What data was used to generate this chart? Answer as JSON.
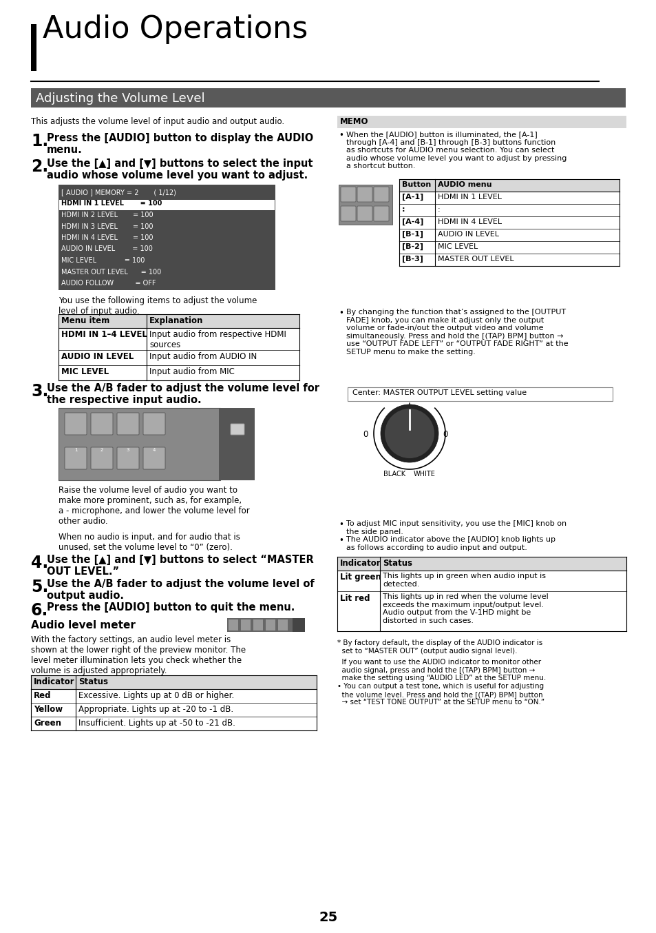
{
  "page_bg": "#ffffff",
  "title_text": "Audio Operations",
  "subtitle_bg": "#595959",
  "subtitle_text": "Adjusting the Volume Level",
  "intro_text": "This adjusts the volume level of input audio and output audio.",
  "step1_num": "1.",
  "step1_text": "Press the [AUDIO] button to display the AUDIO\nmenu.",
  "step2_num": "2.",
  "step2_text": "Use the [▲] and [▼] buttons to select the input\naudio whose volume level you want to adjust.",
  "menu_display_lines": [
    "[ AUDIO ] MEMORY = 2       ( 1/12)",
    "HDMI IN 1 LEVEL       = 100",
    "HDMI IN 2 LEVEL       = 100",
    "HDMI IN 3 LEVEL       = 100",
    "HDMI IN 4 LEVEL       = 100",
    "AUDIO IN LEVEL        = 100",
    "MIC LEVEL             = 100",
    "MASTER OUT LEVEL      = 100",
    "AUDIO FOLLOW          = OFF"
  ],
  "following_text": "You use the following items to adjust the volume\nlevel of input audio.",
  "table1_headers": [
    "Menu item",
    "Explanation"
  ],
  "table1_rows": [
    [
      "HDMI IN 1–4 LEVEL",
      "Input audio from respective HDMI\nsources"
    ],
    [
      "AUDIO IN LEVEL",
      "Input audio from AUDIO IN"
    ],
    [
      "MIC LEVEL",
      "Input audio from MIC"
    ]
  ],
  "step3_num": "3.",
  "step3_text": "Use the A/B fader to adjust the volume level for\nthe respective input audio.",
  "step3_sub1": "Raise the volume level of audio you want to\nmake more prominent, such as, for example,\na - microphone, and lower the volume level for\nother audio.",
  "step3_sub2": "When no audio is input, and for audio that is\nunused, set the volume level to “0” (zero).",
  "step4_num": "4.",
  "step4_text": "Use the [▲] and [▼] buttons to select “MASTER\nOUT LEVEL.”",
  "step5_num": "5.",
  "step5_text": "Use the A/B fader to adjust the volume level of\noutput audio.",
  "step6_num": "6.",
  "step6_text": "Press the [AUDIO] button to quit the menu.",
  "audio_level_heading": "Audio level meter",
  "audio_level_intro": "With the factory settings, an audio level meter is\nshown at the lower right of the preview monitor. The\nlevel meter illumination lets you check whether the\nvolume is adjusted appropriately.",
  "table2_headers": [
    "Indicator",
    "Status"
  ],
  "table2_rows": [
    [
      "Red",
      "Excessive. Lights up at 0 dB or higher."
    ],
    [
      "Yellow",
      "Appropriate. Lights up at -20 to -1 dB."
    ],
    [
      "Green",
      "Insufficient. Lights up at -50 to -21 dB."
    ]
  ],
  "memo_text1": "When the [AUDIO] button is illuminated, the [A-1]\nthrough [A-4] and [B-1] through [B-3] buttons function\nas shortcuts for AUDIO menu selection. You can select\naudio whose volume level you want to adjust by pressing\na shortcut button.",
  "right_table_headers": [
    "Button",
    "AUDIO menu"
  ],
  "right_table_rows": [
    [
      "[A-1]",
      "HDMI IN 1 LEVEL"
    ],
    [
      ":",
      ":"
    ],
    [
      "[A-4]",
      "HDMI IN 4 LEVEL"
    ],
    [
      "[B-1]",
      "AUDIO IN LEVEL"
    ],
    [
      "[B-2]",
      "MIC LEVEL"
    ],
    [
      "[B-3]",
      "MASTER OUT LEVEL"
    ]
  ],
  "memo2_text": "By changing the function that’s assigned to the [OUTPUT\nFADE] knob, you can make it adjust only the output\nvolume or fade-in/out the output video and volume\nsimultaneously. Press and hold the [(TAP) BPM] button →\nuse “OUTPUT FADE LEFT” or “OUTPUT FADE RIGHT” at the\nSETUP menu to make the setting.",
  "output_fade_label": "Center: MASTER OUTPUT LEVEL setting value",
  "output_fade_left": "0",
  "output_fade_right": "0",
  "output_fade_black": "BLACK",
  "output_fade_white": "WHITE",
  "mic_text": "To adjust MIC input sensitivity, you use the [MIC] knob on\nthe side panel.",
  "audio_indicator_text": "The AUDIO indicator above the [AUDIO] knob lights up\nas follows according to audio input and output.",
  "table3_headers": [
    "Indicator",
    "Status"
  ],
  "table3_rows": [
    [
      "Lit green",
      "This lights up in green when audio input is\ndetected."
    ],
    [
      "Lit red",
      "This lights up in red when the volume level\nexceeds the maximum input/output level.\nAudio output from the V-1HD might be\ndistorted in such cases."
    ]
  ],
  "footnote1": "* By factory default, the display of the AUDIO indicator is\n  set to “MASTER OUT” (output audio signal level).",
  "footnote2": "  If you want to use the AUDIO indicator to monitor other\n  audio signal, press and hold the [(TAP) BPM] button →\n  make the setting using “AUDIO LED” at the SETUP menu.",
  "footnote3": "• You can output a test tone, which is useful for adjusting\n  the volume level. Press and hold the [(TAP) BPM] button\n  → set “TEST TONE OUTPUT” at the SETUP menu to “ON.”",
  "page_number": "25"
}
